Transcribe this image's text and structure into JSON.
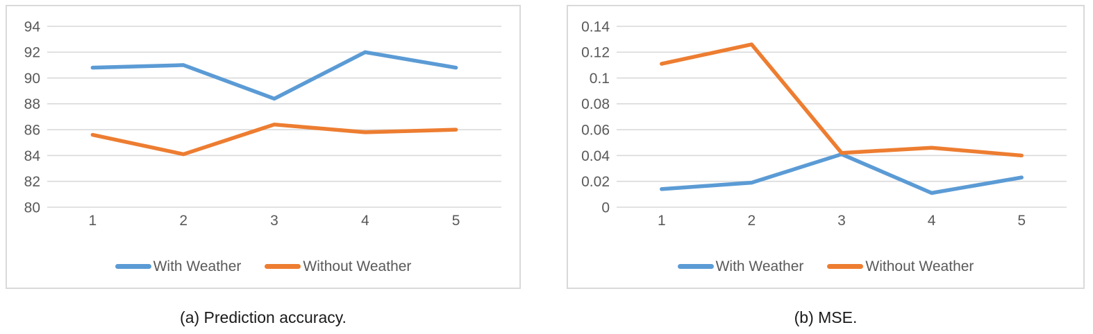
{
  "chart_data": [
    {
      "type": "line",
      "caption": "(a) Prediction accuracy.",
      "categories": [
        "1",
        "2",
        "3",
        "4",
        "5"
      ],
      "series": [
        {
          "name": "With Weather",
          "color": "#5B9BD5",
          "values": [
            90.8,
            91.0,
            88.4,
            92.0,
            90.8
          ]
        },
        {
          "name": "Without Weather",
          "color": "#ED7D31",
          "values": [
            85.6,
            84.1,
            86.4,
            85.8,
            86.0
          ]
        }
      ],
      "ylim": [
        80,
        94
      ],
      "y_tick_values": [
        80,
        82,
        84,
        86,
        88,
        90,
        92,
        94
      ],
      "y_tick_labels": [
        "80",
        "82",
        "84",
        "86",
        "88",
        "90",
        "92",
        "94"
      ],
      "xlabel": "",
      "ylabel": "",
      "grid": true,
      "legend_position": "bottom",
      "colors": {
        "gridline": "#d9d9d9",
        "axis_text": "#595959",
        "panel_border": "#d9d9d9"
      }
    },
    {
      "type": "line",
      "caption": "(b) MSE.",
      "categories": [
        "1",
        "2",
        "3",
        "4",
        "5"
      ],
      "series": [
        {
          "name": "With Weather",
          "color": "#5B9BD5",
          "values": [
            0.014,
            0.019,
            0.041,
            0.011,
            0.023
          ]
        },
        {
          "name": "Without Weather",
          "color": "#ED7D31",
          "values": [
            0.111,
            0.126,
            0.042,
            0.046,
            0.04
          ]
        }
      ],
      "ylim": [
        0,
        0.14
      ],
      "y_tick_values": [
        0,
        0.02,
        0.04,
        0.06,
        0.08,
        0.1,
        0.12,
        0.14
      ],
      "y_tick_labels": [
        "0",
        "0.02",
        "0.04",
        "0.06",
        "0.08",
        "0.1",
        "0.12",
        "0.14"
      ],
      "xlabel": "",
      "ylabel": "",
      "grid": true,
      "legend_position": "bottom",
      "colors": {
        "gridline": "#d9d9d9",
        "axis_text": "#595959",
        "panel_border": "#d9d9d9"
      }
    }
  ]
}
